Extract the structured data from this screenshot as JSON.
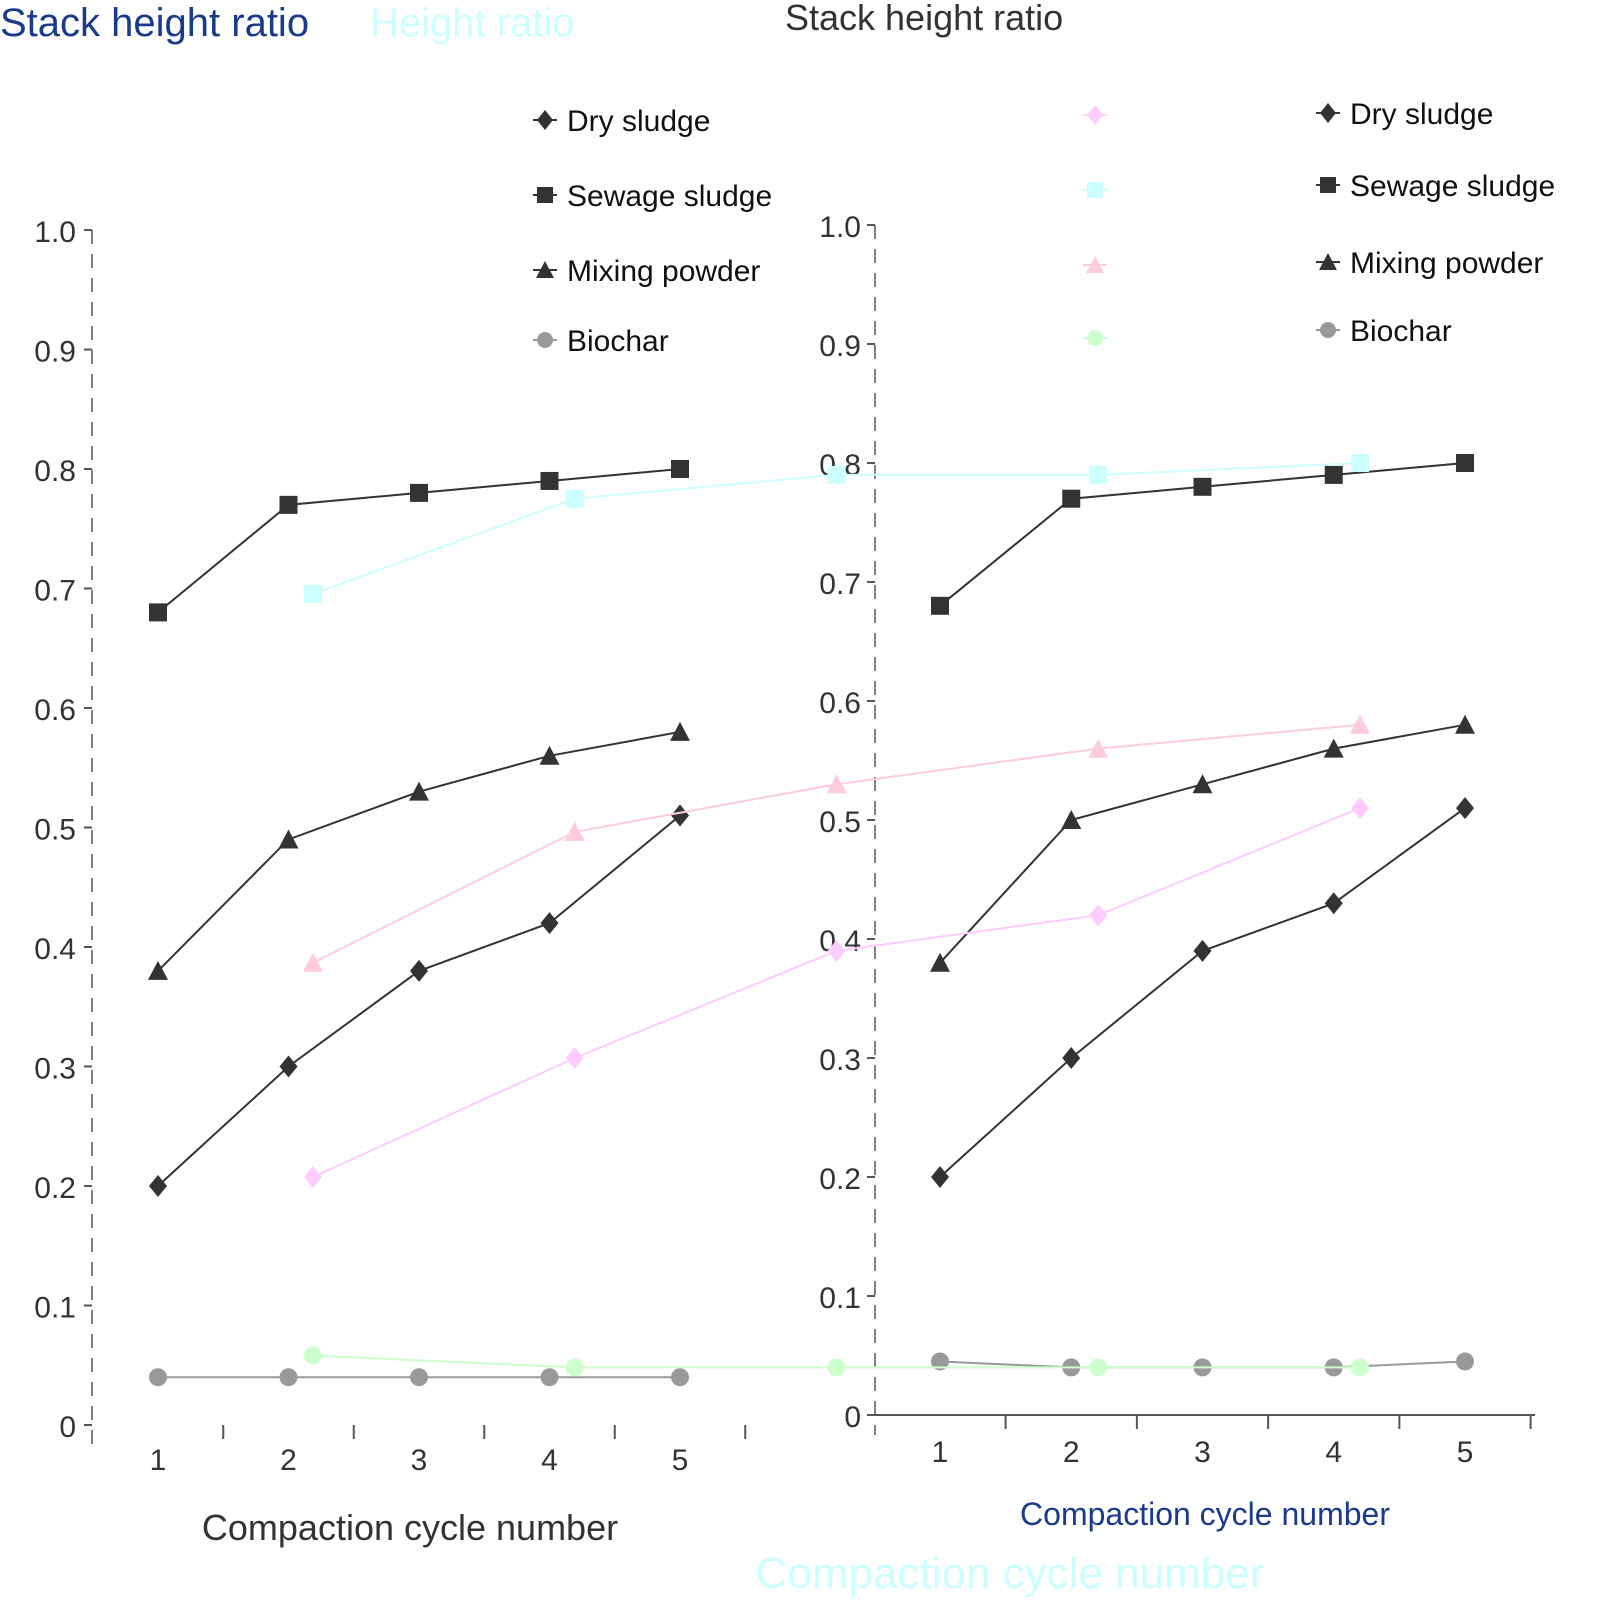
{
  "chart_data": [
    {
      "type": "line",
      "title": "Stack height ratio",
      "xlabel": "Compaction cycle number",
      "ylabel": "",
      "x": [
        1,
        2,
        3,
        4,
        5
      ],
      "xticks": [
        "1",
        "2",
        "3",
        "4",
        "5"
      ],
      "ylim": [
        0,
        1.0
      ],
      "yticks": [
        "0",
        "0.1",
        "0.2",
        "0.3",
        "0.4",
        "0.5",
        "0.6",
        "0.7",
        "0.8",
        "0.9",
        "1.0"
      ],
      "grid": false,
      "legend": "top-center",
      "series": [
        {
          "name": "Dry sludge",
          "marker": "diamond",
          "color": "#333333",
          "values": [
            0.2,
            0.3,
            0.38,
            0.42,
            0.51
          ]
        },
        {
          "name": "Sewage sludge",
          "marker": "square",
          "color": "#333333",
          "values": [
            0.68,
            0.77,
            0.78,
            0.79,
            0.8
          ]
        },
        {
          "name": "Mixing powder",
          "marker": "triangle",
          "color": "#333333",
          "values": [
            0.38,
            0.49,
            0.53,
            0.56,
            0.58
          ]
        },
        {
          "name": "Biochar",
          "marker": "circle",
          "color": "#999999",
          "values": [
            0.04,
            0.04,
            0.04,
            0.04,
            0.04
          ]
        }
      ]
    },
    {
      "type": "line",
      "title": "Stack height ratio",
      "xlabel": "Compaction cycle number",
      "ylabel": "",
      "x": [
        1,
        2,
        3,
        4,
        5
      ],
      "xticks": [
        "1",
        "2",
        "3",
        "4",
        "5"
      ],
      "ylim": [
        0,
        1.0
      ],
      "yticks": [
        "0",
        "0.1",
        "0.2",
        "0.3",
        "0.4",
        "0.5",
        "0.6",
        "0.7",
        "0.8",
        "0.9",
        "1.0"
      ],
      "grid": false,
      "legend": "top-right",
      "series": [
        {
          "name": "Dry sludge",
          "marker": "diamond",
          "color": "#333333",
          "values": [
            0.2,
            0.3,
            0.39,
            0.43,
            0.51
          ]
        },
        {
          "name": "Sewage sludge",
          "marker": "square",
          "color": "#333333",
          "values": [
            0.68,
            0.77,
            0.78,
            0.79,
            0.8
          ]
        },
        {
          "name": "Mixing powder",
          "marker": "triangle",
          "color": "#333333",
          "values": [
            0.38,
            0.5,
            0.53,
            0.56,
            0.58
          ]
        },
        {
          "name": "Biochar",
          "marker": "circle",
          "color": "#999999",
          "values": [
            0.045,
            0.04,
            0.04,
            0.04,
            0.045
          ]
        }
      ]
    },
    {
      "type": "line",
      "title": "Height ratio",
      "xlabel": "Compaction cycle number",
      "x": [
        1,
        2,
        3,
        4,
        5
      ],
      "ylim": [
        0,
        1.0
      ],
      "grid": false,
      "legend": "top-right",
      "series": [
        {
          "marker": "diamond",
          "color": "#ffccff",
          "values": [
            0.2,
            0.3,
            0.39,
            0.42,
            0.51
          ]
        },
        {
          "marker": "square",
          "color": "#ccffff",
          "values": [
            0.69,
            0.77,
            0.79,
            0.79,
            0.8
          ]
        },
        {
          "marker": "triangle",
          "color": "#ffccdd",
          "values": [
            0.38,
            0.49,
            0.53,
            0.56,
            0.58
          ]
        },
        {
          "marker": "circle",
          "color": "#ccffcc",
          "values": [
            0.05,
            0.04,
            0.04,
            0.04,
            0.04
          ]
        }
      ]
    }
  ]
}
